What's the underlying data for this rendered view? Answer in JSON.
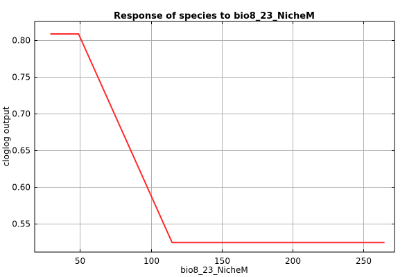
{
  "chart_data": {
    "type": "line",
    "title": "Response of species to bio8_23_NicheM",
    "xlabel": "bio8_23_NicheM",
    "ylabel": "cloglog output",
    "xlim": [
      18,
      272
    ],
    "ylim": [
      0.511,
      0.825
    ],
    "xticks": [
      50,
      100,
      150,
      200,
      250
    ],
    "yticks": [
      0.55,
      0.6,
      0.65,
      0.7,
      0.75,
      0.8
    ],
    "ytick_labels": [
      "0.55",
      "0.60",
      "0.65",
      "0.70",
      "0.75",
      "0.80"
    ],
    "grid": true,
    "line_color": "#ff2a2a",
    "series": [
      {
        "x": [
          29,
          49,
          115,
          116,
          265
        ],
        "y": [
          0.808,
          0.808,
          0.524,
          0.524,
          0.524
        ]
      }
    ]
  }
}
